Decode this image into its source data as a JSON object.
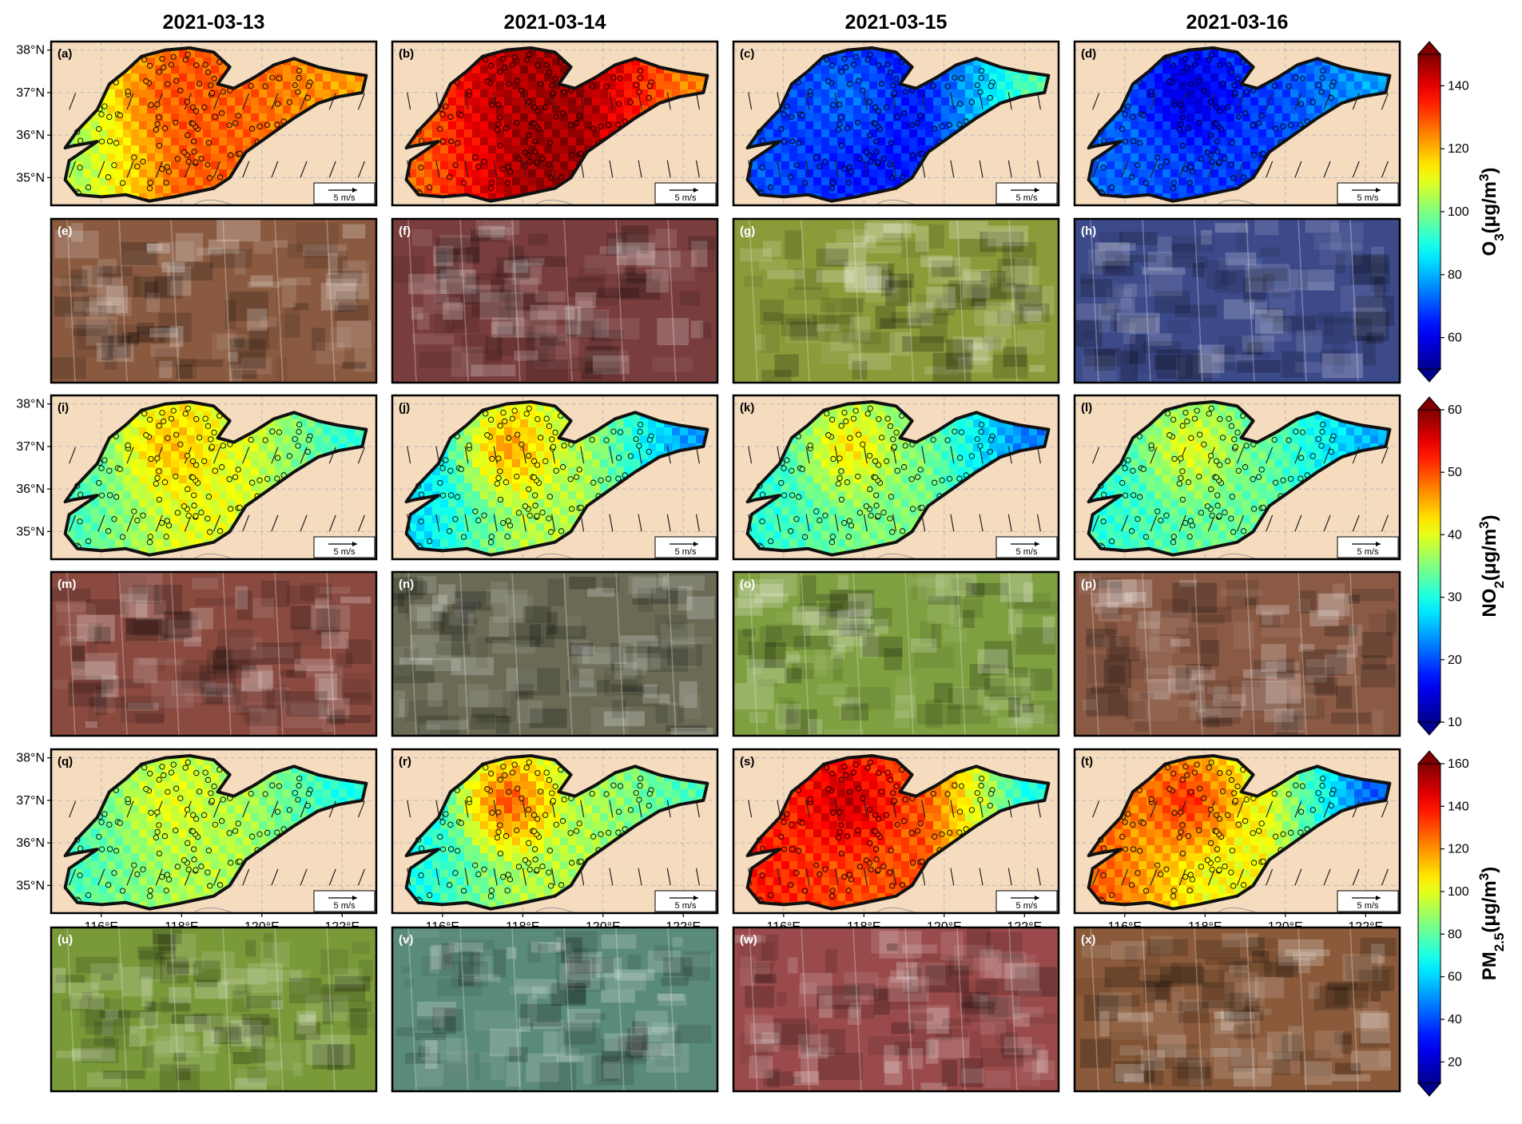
{
  "dates": [
    "2021-03-13",
    "2021-03-14",
    "2021-03-15",
    "2021-03-16"
  ],
  "panel_labels": [
    "(a)",
    "(b)",
    "(c)",
    "(d)",
    "(e)",
    "(f)",
    "(g)",
    "(h)",
    "(i)",
    "(j)",
    "(k)",
    "(l)",
    "(m)",
    "(n)",
    "(o)",
    "(p)",
    "(q)",
    "(r)",
    "(s)",
    "(t)",
    "(u)",
    "(v)",
    "(w)",
    "(x)"
  ],
  "lat_ticks": [
    "38°N",
    "37°N",
    "36°N",
    "35°N"
  ],
  "lon_ticks": [
    "116°E",
    "118°E",
    "120°E",
    "122°E"
  ],
  "scale_label": "5 m/s",
  "pollutants": [
    {
      "name": "O3",
      "title_main": "O",
      "title_sub": "3",
      "title_unit": "(μg/m",
      "title_sup": "3",
      "title_close": ")",
      "range": [
        50,
        150
      ],
      "ticks": [
        "60",
        "80",
        "100",
        "120",
        "140"
      ],
      "tick_values": [
        60,
        80,
        100,
        120,
        140
      ],
      "map_levels": [
        {
          "west": 0.55,
          "center": 0.78,
          "east": 0.72,
          "hotspot": 0.8
        },
        {
          "west": 0.78,
          "center": 0.97,
          "east": 0.75,
          "hotspot": 0.95
        },
        {
          "west": 0.2,
          "center": 0.15,
          "east": 0.45,
          "hotspot": 0.25
        },
        {
          "west": 0.22,
          "center": 0.18,
          "east": 0.28,
          "hotspot": 0.05
        }
      ]
    },
    {
      "name": "NO2",
      "title_main": "NO",
      "title_sub": "2",
      "title_unit": "(μg/m",
      "title_sup": "3",
      "title_close": ")",
      "range": [
        10,
        60
      ],
      "ticks": [
        "10",
        "20",
        "30",
        "40",
        "50",
        "60"
      ],
      "tick_values": [
        10,
        20,
        30,
        40,
        50,
        60
      ],
      "map_levels": [
        {
          "west": 0.45,
          "center": 0.6,
          "east": 0.42,
          "hotspot": 0.72
        },
        {
          "west": 0.35,
          "center": 0.55,
          "east": 0.28,
          "hotspot": 0.78
        },
        {
          "west": 0.42,
          "center": 0.5,
          "east": 0.25,
          "hotspot": 0.7
        },
        {
          "west": 0.42,
          "center": 0.48,
          "east": 0.3,
          "hotspot": 0.65
        }
      ]
    },
    {
      "name": "PM2.5",
      "title_main": "PM",
      "title_sub": "2.5",
      "title_unit": "(μg/m",
      "title_sup": "3",
      "title_close": ")",
      "range": [
        10,
        160
      ],
      "ticks": [
        "20",
        "40",
        "60",
        "80",
        "100",
        "120",
        "140",
        "160"
      ],
      "tick_values": [
        20,
        40,
        60,
        80,
        100,
        120,
        140,
        160
      ],
      "map_levels": [
        {
          "west": 0.45,
          "center": 0.55,
          "east": 0.4,
          "hotspot": 0.62
        },
        {
          "west": 0.4,
          "center": 0.55,
          "east": 0.45,
          "hotspot": 0.88
        },
        {
          "west": 0.85,
          "center": 0.8,
          "east": 0.4,
          "hotspot": 0.97
        },
        {
          "west": 0.78,
          "center": 0.62,
          "east": 0.22,
          "hotspot": 0.9
        }
      ]
    }
  ],
  "satellite_tints": [
    [
      "#8a5a40",
      "#7a3d3d",
      "#8c9b3a",
      "#3d4a8a"
    ],
    [
      "#8a4a40",
      "#6a6a55",
      "#7fa040",
      "#8a5a45"
    ],
    [
      "#7a9a3a",
      "#5a8a7a",
      "#9a4a4a",
      "#8a5a3a"
    ]
  ],
  "colors": {
    "land_bg": "#f6dcbf",
    "frame": "#000000",
    "map_outline": "#111111"
  }
}
